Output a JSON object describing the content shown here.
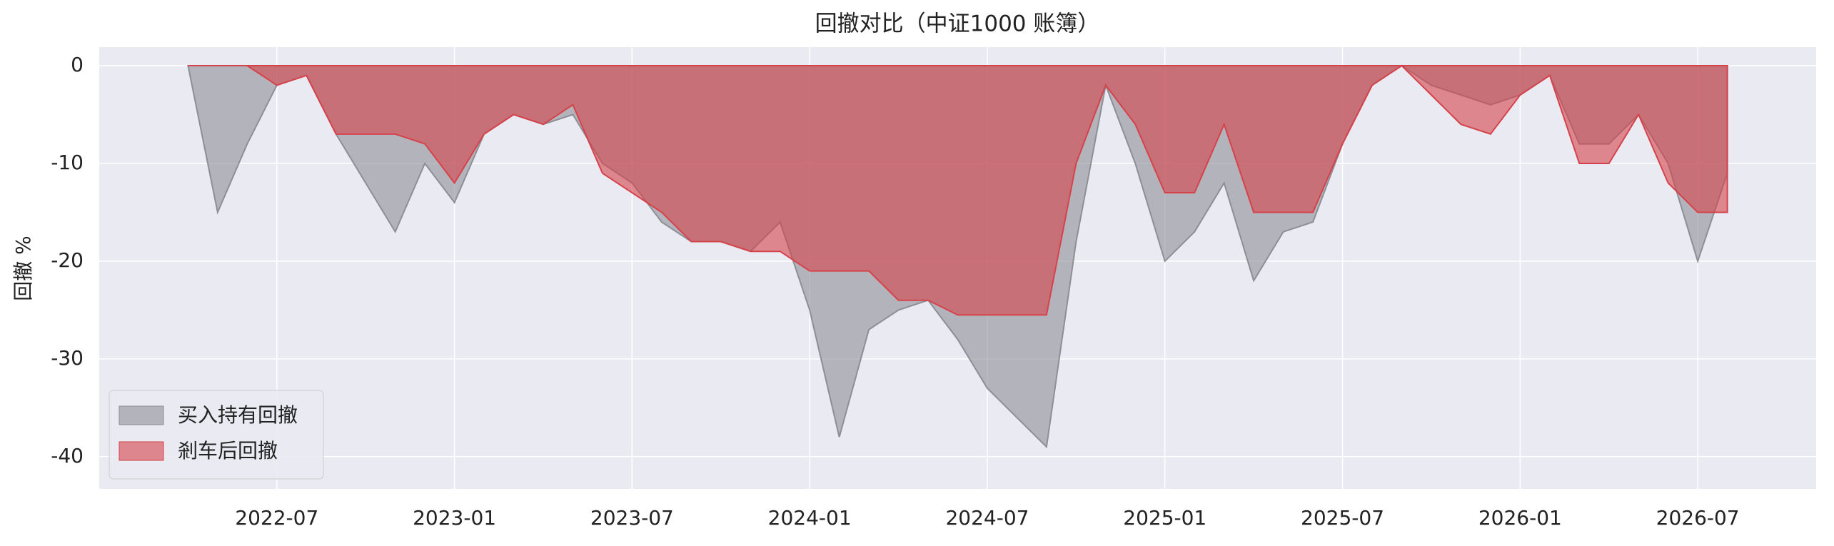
{
  "chart_data": {
    "type": "area",
    "title": "回撤对比（中证1000 账簿）",
    "y_label": "回撤 %",
    "x": [
      "2022-04",
      "2022-05",
      "2022-06",
      "2022-07",
      "2022-08",
      "2022-09",
      "2022-10",
      "2022-11",
      "2022-12",
      "2023-01",
      "2023-02",
      "2023-03",
      "2023-04",
      "2023-05",
      "2023-06",
      "2023-07",
      "2023-08",
      "2023-09",
      "2023-10",
      "2023-11",
      "2023-12",
      "2024-01",
      "2024-02",
      "2024-03",
      "2024-04",
      "2024-05",
      "2024-06",
      "2024-07",
      "2024-08",
      "2024-09",
      "2024-10",
      "2024-11",
      "2024-12",
      "2025-01",
      "2025-02",
      "2025-03",
      "2025-04",
      "2025-05",
      "2025-06",
      "2025-07",
      "2025-08",
      "2025-09",
      "2025-10",
      "2025-11",
      "2025-12",
      "2026-01",
      "2026-02",
      "2026-03",
      "2026-04",
      "2026-05",
      "2026-06",
      "2026-07",
      "2026-08"
    ],
    "series": [
      {
        "name": "买入持有回撤",
        "color": "#8e8e96",
        "values": [
          0,
          -15,
          -8,
          -2,
          -1,
          -7,
          -12,
          -17,
          -10,
          -14,
          -7,
          -5,
          -6,
          -5,
          -10,
          -12,
          -16,
          -18,
          -18,
          -19,
          -16,
          -25,
          -38,
          -27,
          -25,
          -24,
          -28,
          -33,
          -36,
          -39,
          -18,
          -2,
          -10,
          -20,
          -17,
          -12,
          -22,
          -17,
          -16,
          -8,
          -2,
          0,
          -2,
          -3,
          -4,
          -3,
          -1,
          -8,
          -8,
          -5,
          -10,
          -20,
          -11
        ]
      },
      {
        "name": "剎车后回撤",
        "color": "#d6424a",
        "values": [
          0,
          0,
          0,
          -2,
          -1,
          -7,
          -7,
          -7,
          -8,
          -12,
          -7,
          -5,
          -6,
          -4,
          -11,
          -13,
          -15,
          -18,
          -18,
          -19,
          -19,
          -21,
          -21,
          -21,
          -24,
          -24,
          -25.5,
          -25.5,
          -25.5,
          -25.5,
          -10,
          -2,
          -6,
          -13,
          -13,
          -6,
          -15,
          -15,
          -15,
          -8,
          -2,
          0,
          -3,
          -6,
          -7,
          -3,
          -1,
          -10,
          -10,
          -5,
          -12,
          -15,
          -15
        ]
      }
    ],
    "xlim": [
      "2022-01",
      "2026-11"
    ],
    "xticks": [
      "2022-07",
      "2023-01",
      "2023-07",
      "2024-01",
      "2024-07",
      "2025-01",
      "2025-07",
      "2026-01",
      "2026-07"
    ],
    "ylim": [
      -43.3,
      1.9
    ],
    "yticks": [
      0,
      -10,
      -20,
      -30,
      -40
    ],
    "grid": true,
    "legend": "lower left"
  }
}
